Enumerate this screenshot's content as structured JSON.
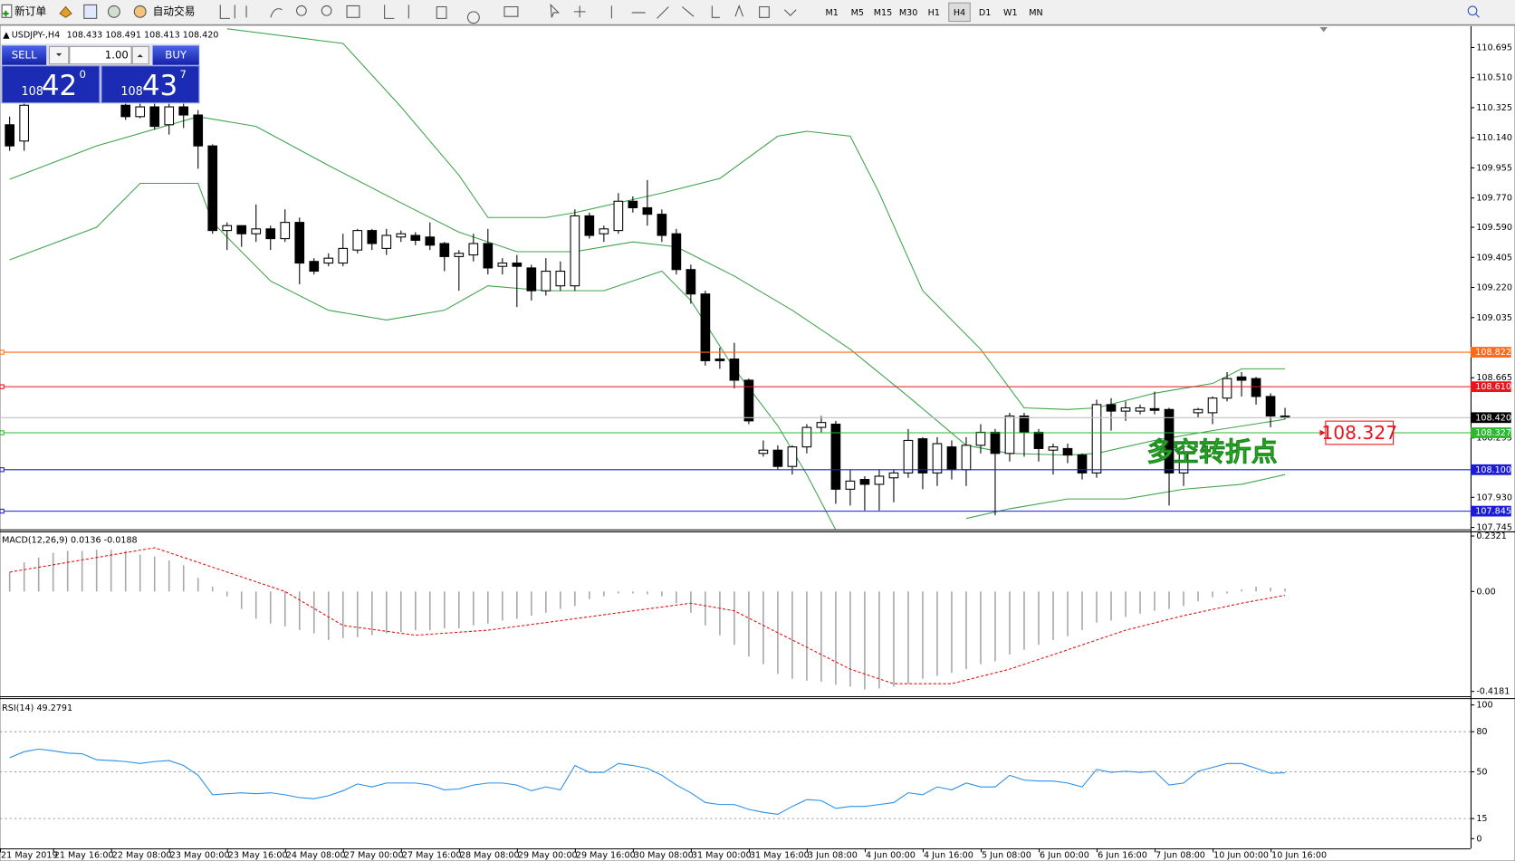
{
  "toolbar": {
    "new_order": "新订单",
    "auto_trading": "自动交易",
    "timeframes": [
      "M1",
      "M5",
      "M15",
      "M30",
      "H1",
      "H4",
      "D1",
      "W1",
      "MN"
    ],
    "active_timeframe": "H4"
  },
  "trade_panel": {
    "sell": "SELL",
    "lot": "1.00",
    "buy": "BUY",
    "sell_price": {
      "big": "108",
      "main": "42",
      "small": "0"
    },
    "buy_price": {
      "big": "108",
      "main": "43",
      "small": "7"
    }
  },
  "time_axis": [
    "21 May 2019",
    "21 May 16:00",
    "22 May 08:00",
    "23 May 00:00",
    "23 May 16:00",
    "24 May 08:00",
    "27 May 00:00",
    "27 May 16:00",
    "28 May 08:00",
    "29 May 00:00",
    "29 May 16:00",
    "30 May 08:00",
    "31 May 00:00",
    "31 May 16:00",
    "3 Jun 08:00",
    "4 Jun 00:00",
    "4 Jun 16:00",
    "5 Jun 08:00",
    "6 Jun 00:00",
    "6 Jun 16:00",
    "7 Jun 08:00",
    "10 Jun 00:00",
    "10 Jun 16:00"
  ],
  "chart_data": [
    {
      "type": "candlestick",
      "title": "USDJPY-,H4",
      "info": "108.433 108.491 108.413 108.420",
      "open": [
        110.22,
        110.12,
        null,
        null,
        null,
        null,
        null,
        null,
        110.34,
        110.27,
        110.33,
        110.22,
        110.33,
        110.28,
        110.09,
        109.57,
        109.6,
        109.55,
        109.58,
        109.52,
        109.62,
        109.38,
        109.37,
        109.37,
        109.45,
        109.57,
        109.46,
        109.53,
        109.54,
        109.53,
        109.49,
        109.41,
        109.42,
        109.49,
        109.35,
        109.37,
        109.34,
        109.2,
        109.23,
        109.23,
        109.66,
        109.55,
        109.57,
        109.75,
        109.71,
        109.67,
        109.55,
        109.33,
        109.18,
        108.78,
        108.78,
        108.65,
        108.2,
        108.22,
        108.12,
        108.24,
        108.36,
        108.38,
        107.98,
        108.04,
        108.01,
        108.05,
        108.08,
        108.29,
        108.08,
        108.24,
        108.1,
        108.25,
        108.33,
        108.2,
        108.43,
        108.33,
        108.22,
        108.23,
        108.19,
        108.08,
        108.5,
        108.46,
        108.46,
        108.475,
        108.47,
        108.08,
        108.45,
        108.45,
        108.54,
        108.67,
        108.66,
        108.55,
        108.43
      ],
      "high": [
        110.27,
        110.39,
        null,
        null,
        null,
        null,
        null,
        null,
        110.36,
        110.36,
        110.36,
        110.36,
        110.36,
        110.31,
        110.1,
        109.62,
        109.6,
        109.73,
        109.6,
        109.7,
        109.65,
        109.4,
        109.43,
        109.55,
        109.58,
        109.58,
        109.58,
        109.57,
        109.56,
        109.62,
        109.5,
        109.45,
        109.55,
        109.58,
        109.4,
        109.42,
        109.36,
        109.4,
        109.38,
        109.7,
        109.68,
        109.6,
        109.8,
        109.78,
        109.88,
        109.7,
        109.58,
        109.36,
        109.2,
        108.85,
        108.88,
        108.66,
        108.28,
        108.25,
        108.25,
        108.38,
        108.43,
        108.4,
        108.1,
        108.06,
        108.1,
        108.1,
        108.35,
        108.3,
        108.3,
        108.28,
        108.3,
        108.38,
        108.35,
        108.45,
        108.45,
        108.35,
        108.26,
        108.26,
        108.2,
        108.53,
        108.54,
        108.52,
        108.5,
        108.58,
        108.48,
        108.25,
        108.48,
        108.55,
        108.7,
        108.7,
        108.67,
        108.57,
        108.48
      ],
      "low": [
        110.06,
        110.06,
        null,
        null,
        null,
        null,
        null,
        null,
        110.25,
        110.26,
        110.19,
        110.16,
        110.2,
        109.95,
        109.55,
        109.45,
        109.47,
        109.5,
        109.45,
        109.5,
        109.24,
        109.3,
        109.35,
        109.35,
        109.43,
        109.45,
        109.42,
        109.5,
        109.48,
        109.45,
        109.32,
        109.2,
        109.38,
        109.3,
        109.3,
        109.1,
        109.14,
        109.17,
        109.2,
        109.2,
        109.52,
        109.5,
        109.55,
        109.68,
        109.6,
        109.5,
        109.3,
        109.12,
        108.74,
        108.72,
        108.6,
        108.38,
        108.18,
        108.1,
        108.07,
        108.2,
        108.33,
        107.89,
        107.88,
        107.85,
        107.85,
        107.9,
        108.05,
        107.98,
        108.0,
        108.04,
        108.0,
        108.2,
        107.82,
        108.15,
        108.18,
        108.15,
        108.07,
        108.14,
        108.04,
        108.05,
        108.34,
        108.4,
        108.44,
        108.44,
        107.88,
        108.0,
        108.42,
        108.38,
        108.52,
        108.55,
        108.5,
        108.36,
        108.41
      ],
      "close": [
        110.09,
        110.34,
        null,
        null,
        null,
        null,
        null,
        null,
        110.27,
        110.33,
        110.21,
        110.33,
        110.28,
        110.09,
        109.57,
        109.6,
        109.55,
        109.58,
        109.52,
        109.62,
        109.37,
        109.32,
        109.4,
        109.46,
        109.57,
        109.49,
        109.54,
        109.55,
        109.51,
        109.48,
        109.41,
        109.43,
        109.49,
        109.34,
        109.37,
        109.35,
        109.2,
        109.32,
        109.32,
        109.66,
        109.54,
        109.58,
        109.75,
        109.71,
        109.67,
        109.54,
        109.33,
        109.18,
        108.77,
        108.77,
        108.65,
        108.4,
        108.22,
        108.12,
        108.24,
        108.36,
        108.39,
        107.98,
        108.03,
        108.01,
        108.06,
        108.08,
        108.28,
        108.08,
        108.26,
        108.1,
        108.25,
        108.33,
        108.2,
        108.43,
        108.33,
        108.23,
        108.24,
        108.19,
        108.08,
        108.5,
        108.46,
        108.48,
        108.48,
        108.465,
        108.08,
        108.2,
        108.47,
        108.54,
        108.66,
        108.65,
        108.55,
        108.43,
        108.42
      ],
      "bands": [
        {
          "color": "#3fa34d",
          "x": [
            15,
            23,
            27,
            31,
            33,
            37,
            39,
            45,
            49,
            53,
            55,
            58,
            60,
            63,
            67,
            70,
            73,
            75,
            79,
            83,
            85,
            88
          ],
          "values": [
            110.81,
            110.72,
            110.33,
            109.91,
            109.65,
            109.65,
            109.68,
            109.8,
            109.89,
            110.15,
            110.18,
            110.15,
            109.8,
            109.2,
            108.84,
            108.48,
            108.47,
            108.48,
            108.57,
            108.63,
            108.72,
            108.72
          ]
        },
        {
          "color": "#3fa34d",
          "x": [
            0,
            6,
            13,
            17,
            22,
            27,
            31,
            35,
            39,
            43,
            46,
            50,
            54,
            58,
            62,
            66,
            69,
            73,
            75,
            79,
            83,
            88
          ],
          "values": [
            109.885,
            110.09,
            110.27,
            110.21,
            109.97,
            109.74,
            109.56,
            109.44,
            109.44,
            109.5,
            109.47,
            109.29,
            109.08,
            108.84,
            108.55,
            108.25,
            108.2,
            108.19,
            108.2,
            108.28,
            108.34,
            108.41
          ]
        },
        {
          "color": "#3fa34d",
          "x": [
            0,
            6,
            9,
            13,
            14,
            18,
            22,
            26,
            30,
            33,
            37,
            41,
            45,
            47,
            50,
            53,
            55,
            57,
            61,
            66,
            69,
            73,
            77,
            81,
            85,
            88
          ],
          "values": [
            109.39,
            109.59,
            109.86,
            109.86,
            109.62,
            109.26,
            109.08,
            109.02,
            109.08,
            109.23,
            109.2,
            109.2,
            109.32,
            109.14,
            108.72,
            108.37,
            108.07,
            107.73,
            null,
            107.8,
            107.86,
            107.92,
            107.92,
            107.98,
            108.01,
            108.07
          ]
        }
      ],
      "price_levels": [
        {
          "value": 108.822,
          "label": "108.822",
          "color": "#ff6a1a"
        },
        {
          "value": 108.61,
          "label": "108.610",
          "color": "#e8141e"
        },
        {
          "value": 108.327,
          "label": "108.327",
          "color": "#2db82d"
        },
        {
          "value": 108.1,
          "label": "108.100",
          "color": "#1c1cd8"
        },
        {
          "value": 107.845,
          "label": "107.845",
          "color": "#1c1cd8"
        }
      ],
      "current_price": {
        "value": 108.42,
        "label": "108.420"
      },
      "marked_level": {
        "value": 108.327,
        "label": "108.327"
      },
      "annotation": "多空转折点",
      "ylim": [
        107.733,
        110.82
      ],
      "yticks": [
        {
          "value": 110.695,
          "label": "110.695"
        },
        {
          "value": 110.51,
          "label": "110.510"
        },
        {
          "value": 110.325,
          "label": "110.325"
        },
        {
          "value": 110.14,
          "label": "110.140"
        },
        {
          "value": 109.955,
          "label": "109.955"
        },
        {
          "value": 109.77,
          "label": "109.770"
        },
        {
          "value": 109.59,
          "label": "109.590"
        },
        {
          "value": 109.405,
          "label": "109.405"
        },
        {
          "value": 109.22,
          "label": "109.220"
        },
        {
          "value": 109.035,
          "label": "109.035"
        },
        {
          "value": 108.665,
          "label": "108.665"
        },
        {
          "value": 108.295,
          "label": "108.295"
        },
        {
          "value": 107.93,
          "label": "107.930"
        },
        {
          "value": 107.745,
          "label": "107.745"
        }
      ]
    },
    {
      "type": "macd",
      "title": "MACD(12,26,9) 0.0136 -0.0188",
      "color": "#a8a8a8",
      "values": [
        0.081,
        0.122,
        0.142,
        0.162,
        0.17,
        0.17,
        0.175,
        0.175,
        0.17,
        0.154,
        0.146,
        0.13,
        0.11,
        0.057,
        0.02,
        -0.02,
        -0.073,
        -0.114,
        -0.134,
        -0.146,
        -0.162,
        -0.175,
        -0.203,
        -0.195,
        -0.191,
        -0.183,
        -0.175,
        -0.17,
        -0.162,
        -0.162,
        -0.154,
        -0.154,
        -0.142,
        -0.134,
        -0.122,
        -0.114,
        -0.101,
        -0.089,
        -0.073,
        -0.061,
        -0.032,
        -0.02,
        -0.008,
        -0.008,
        -0.012,
        -0.02,
        -0.049,
        -0.089,
        -0.142,
        -0.183,
        -0.223,
        -0.272,
        -0.304,
        -0.345,
        -0.365,
        -0.373,
        -0.377,
        -0.39,
        -0.398,
        -0.41,
        -0.406,
        -0.398,
        -0.386,
        -0.365,
        -0.353,
        -0.341,
        -0.325,
        -0.304,
        -0.292,
        -0.264,
        -0.244,
        -0.223,
        -0.203,
        -0.187,
        -0.162,
        -0.13,
        -0.122,
        -0.106,
        -0.093,
        -0.081,
        -0.073,
        -0.061,
        -0.041,
        -0.024,
        -0.008,
        0.008,
        0.02,
        0.016,
        0.012
      ],
      "signal": {
        "color": "#e01010",
        "x": [
          0,
          10,
          19,
          23,
          28,
          33,
          38,
          43,
          47,
          50,
          54,
          58,
          61,
          65,
          69,
          73,
          77,
          81,
          85,
          88
        ],
        "values": [
          0.081,
          0.183,
          0,
          -0.142,
          -0.183,
          -0.162,
          -0.122,
          -0.081,
          -0.049,
          -0.081,
          -0.203,
          -0.325,
          -0.386,
          -0.386,
          -0.325,
          -0.244,
          -0.162,
          -0.101,
          -0.049,
          -0.016
        ]
      },
      "ylim": [
        -0.438,
        0.2476
      ],
      "yticks": [
        0.2321,
        {
          "value": 0,
          "label": "0.00"
        },
        -0.4181
      ]
    },
    {
      "type": "line",
      "title": "RSI(14) 49.2791",
      "color": "#2b8fe8",
      "values": [
        60.6,
        65,
        67,
        65.7,
        64,
        63.5,
        59,
        58.4,
        57.7,
        56.2,
        57.7,
        58.4,
        54.7,
        47.4,
        32.8,
        33.6,
        34.3,
        33.6,
        34.3,
        32.8,
        30.7,
        29.9,
        32.1,
        35.8,
        40.9,
        38.7,
        41.6,
        41.6,
        41.6,
        40.1,
        36.5,
        37.2,
        40.1,
        41.6,
        41.6,
        40.1,
        35.8,
        38.7,
        36.5,
        54.7,
        49.6,
        49.6,
        56.2,
        54.7,
        52.6,
        47.4,
        40.1,
        34.3,
        27,
        25.5,
        25.5,
        21.9,
        19.7,
        18.2,
        24.1,
        29.2,
        28.5,
        22.6,
        24.1,
        24.1,
        25.5,
        27,
        34.3,
        32.8,
        38.7,
        36.5,
        41.6,
        38.7,
        38.7,
        47.4,
        43.8,
        43.1,
        43.1,
        41.6,
        38.7,
        51.8,
        49.6,
        50.4,
        49.6,
        50.4,
        40.1,
        41.6,
        50.4,
        53.3,
        56.2,
        56.2,
        52.6,
        48.9,
        49.28
      ],
      "levels": [
        80,
        50,
        15
      ],
      "ylim": [
        -7.3,
        104.4
      ],
      "yticks": [
        100,
        80,
        50,
        15,
        0
      ]
    }
  ]
}
